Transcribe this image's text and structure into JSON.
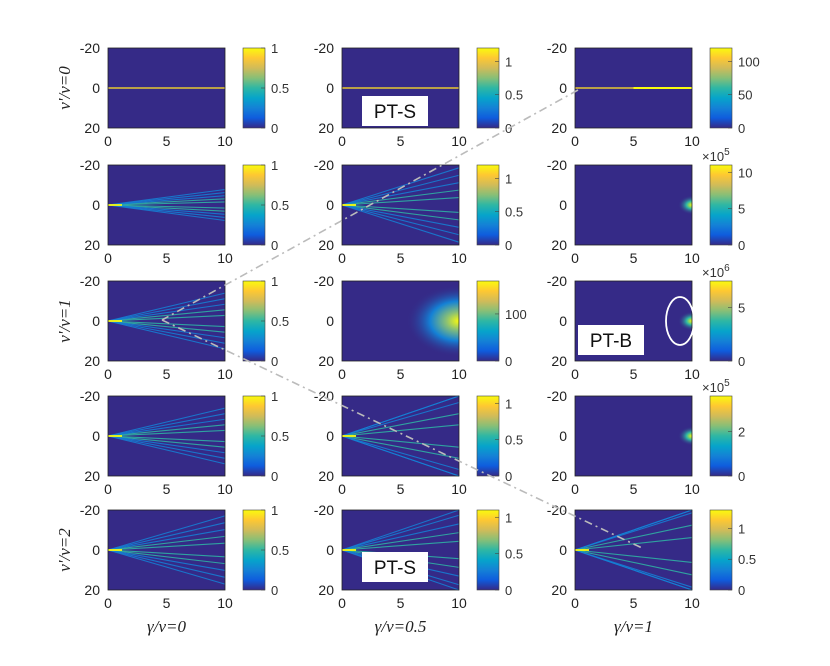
{
  "figure": {
    "row_labels": [
      "ν'/ν=0",
      "",
      "ν'/ν=1",
      "",
      "ν'/ν=2"
    ],
    "col_labels": [
      "γ/ν=0",
      "γ/ν=0.5",
      "γ/ν=1"
    ],
    "x_ticks": [
      "0",
      "5",
      "10"
    ],
    "y_ticks": [
      "-20",
      "0",
      "20"
    ],
    "annotations": {
      "pts_top": "PT-S",
      "ptb": "PT-B",
      "pts_bottom": "PT-S"
    }
  },
  "colors": {
    "background": "#352A87",
    "colormap": [
      "#352A87",
      "#0F5CDD",
      "#1481D6",
      "#06A4CA",
      "#2EB7A4",
      "#87BF77",
      "#D1BB59",
      "#FEC832",
      "#F9FB0E"
    ],
    "guide_line": "#BBBBBB"
  },
  "chart_data": {
    "type": "heatmap",
    "xlim": [
      0,
      10
    ],
    "ylim": [
      20,
      -20
    ],
    "grid": false,
    "panels": [
      {
        "row": 0,
        "col": 0,
        "pattern": "line",
        "scale": "",
        "colorbar_ticks": [
          "0",
          "0.5",
          "1"
        ],
        "colorbar_max": 1
      },
      {
        "row": 0,
        "col": 1,
        "pattern": "line",
        "scale": "",
        "colorbar_ticks": [
          "0",
          "0.5",
          "1"
        ],
        "colorbar_max": 1.2
      },
      {
        "row": 0,
        "col": 2,
        "pattern": "line_bright_end",
        "scale": "",
        "colorbar_ticks": [
          "0",
          "50",
          "100"
        ],
        "colorbar_max": 120
      },
      {
        "row": 1,
        "col": 0,
        "pattern": "fan",
        "spread": 0.5,
        "scale": "",
        "colorbar_ticks": [
          "0",
          "0.5",
          "1"
        ],
        "colorbar_max": 1
      },
      {
        "row": 1,
        "col": 1,
        "pattern": "fan",
        "spread": 1.2,
        "scale": "",
        "colorbar_ticks": [
          "0",
          "0.5",
          "1"
        ],
        "colorbar_max": 1.2
      },
      {
        "row": 1,
        "col": 2,
        "pattern": "spot",
        "scale": "×10^5",
        "colorbar_ticks": [
          "0",
          "5",
          "10"
        ],
        "colorbar_max": 11
      },
      {
        "row": 2,
        "col": 0,
        "pattern": "fan",
        "spread": 0.9,
        "scale": "",
        "colorbar_ticks": [
          "0",
          "0.5",
          "1"
        ],
        "colorbar_max": 1
      },
      {
        "row": 2,
        "col": 1,
        "pattern": "glow",
        "scale": "",
        "colorbar_ticks": [
          "0",
          "100"
        ],
        "colorbar_max": 170
      },
      {
        "row": 2,
        "col": 2,
        "pattern": "spot",
        "scale": "×10^6",
        "colorbar_ticks": [
          "0",
          "5"
        ],
        "colorbar_max": 7.5
      },
      {
        "row": 3,
        "col": 0,
        "pattern": "fan",
        "spread": 0.9,
        "scale": "",
        "colorbar_ticks": [
          "0",
          "0.5",
          "1"
        ],
        "colorbar_max": 1
      },
      {
        "row": 3,
        "col": 1,
        "pattern": "fan",
        "spread": 1.8,
        "scale": "",
        "colorbar_ticks": [
          "0",
          "0.5",
          "1"
        ],
        "colorbar_max": 1.1
      },
      {
        "row": 3,
        "col": 2,
        "pattern": "spot",
        "scale": "×10^5",
        "colorbar_ticks": [
          "0",
          "2"
        ],
        "colorbar_max": 3.6
      },
      {
        "row": 4,
        "col": 0,
        "pattern": "fan",
        "spread": 1.1,
        "scale": "",
        "colorbar_ticks": [
          "0",
          "0.5",
          "1"
        ],
        "colorbar_max": 1
      },
      {
        "row": 4,
        "col": 1,
        "pattern": "fan",
        "spread": 1.4,
        "scale": "",
        "colorbar_ticks": [
          "0",
          "0.5",
          "1"
        ],
        "colorbar_max": 1.1
      },
      {
        "row": 4,
        "col": 2,
        "pattern": "fan",
        "spread": 2.0,
        "scale": "",
        "colorbar_ticks": [
          "0",
          "0.5",
          "1"
        ],
        "colorbar_max": 1.3
      }
    ]
  }
}
